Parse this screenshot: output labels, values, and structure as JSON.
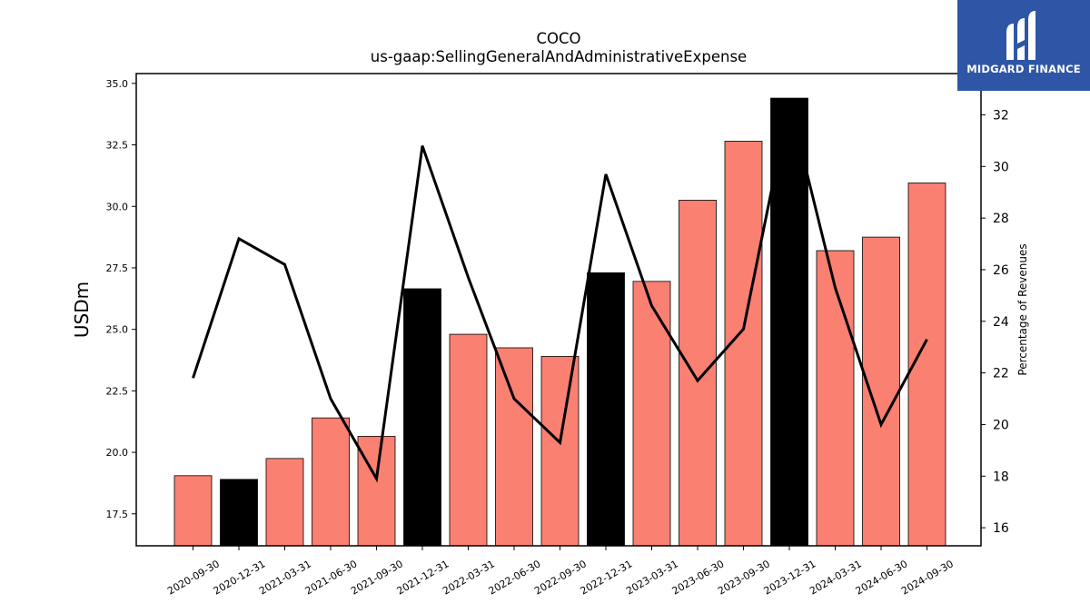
{
  "chart_data": {
    "type": "bar",
    "title": "COCO",
    "subtitle": "us-gaap:SellingGeneralAndAdministrativeExpense",
    "ylabel": "USDm",
    "ylabel_right": "Percentage of Revenues",
    "categories": [
      "2020-09-30",
      "2020-12-31",
      "2021-03-31",
      "2021-06-30",
      "2021-09-30",
      "2021-12-31",
      "2022-03-31",
      "2022-06-30",
      "2022-09-30",
      "2022-12-31",
      "2023-03-31",
      "2023-06-30",
      "2023-09-30",
      "2023-12-31",
      "2024-03-31",
      "2024-06-30",
      "2024-09-30"
    ],
    "series": [
      {
        "type": "bar",
        "axis": "left",
        "values": [
          19.05,
          18.9,
          19.75,
          21.4,
          20.65,
          26.65,
          24.8,
          24.25,
          23.9,
          27.3,
          26.95,
          30.25,
          32.65,
          34.4,
          28.2,
          28.75,
          30.95
        ],
        "highlight": [
          false,
          true,
          false,
          false,
          false,
          true,
          false,
          false,
          false,
          true,
          false,
          false,
          false,
          true,
          false,
          false,
          false
        ]
      },
      {
        "type": "line",
        "axis": "right",
        "values": [
          21.8,
          27.2,
          26.2,
          21.0,
          17.9,
          30.8,
          25.7,
          21.0,
          19.3,
          29.7,
          24.6,
          21.7,
          23.7,
          32.5,
          25.3,
          20.0,
          23.3
        ]
      }
    ],
    "ylim": [
      16.2,
      35.4
    ],
    "ylim_right": [
      15.3,
      33.6
    ],
    "yticks": [
      "17.5",
      "20.0",
      "22.5",
      "25.0",
      "27.5",
      "30.0",
      "32.5",
      "35.0"
    ],
    "yticks_right": [
      "16",
      "18",
      "20",
      "22",
      "24",
      "26",
      "28",
      "30",
      "32"
    ],
    "colors": {
      "bar": "#fa8072",
      "bar_highlight": "#000000",
      "line": "#000000"
    },
    "grid": false,
    "legend": "none"
  },
  "logo": {
    "text": "MIDGARD FINANCE",
    "background": "#2f56a6"
  }
}
